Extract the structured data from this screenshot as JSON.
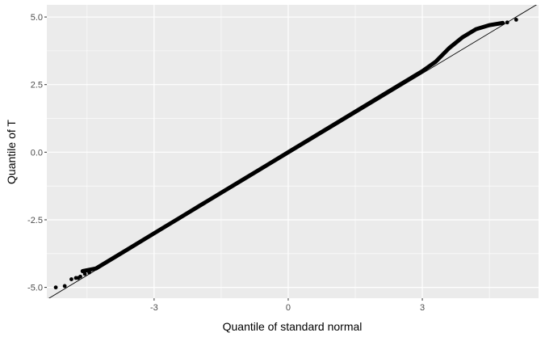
{
  "chart_data": {
    "type": "scatter",
    "subtype": "qq-plot",
    "xlabel": "Quantile of standard normal",
    "ylabel": "Quantile of T",
    "xlim": [
      -5.4,
      5.6
    ],
    "ylim": [
      -5.4,
      5.45
    ],
    "x_ticks": [
      -3,
      0,
      3
    ],
    "x_tick_labels": [
      "-3",
      "0",
      "3"
    ],
    "y_ticks": [
      -5.0,
      -2.5,
      0.0,
      2.5,
      5.0
    ],
    "y_tick_labels": [
      "-5.0",
      "-2.5",
      "0.0",
      "2.5",
      "5.0"
    ],
    "grid": true,
    "background": "#ebebeb",
    "gridline_color": "#ffffff",
    "point_color": "#000000",
    "reference_line": {
      "x": [
        -5.4,
        5.6
      ],
      "y": [
        -5.45,
        5.5
      ],
      "color": "#000000"
    },
    "curve": {
      "x": [
        -4.6,
        -4.3,
        -4.0,
        -3.6,
        -3.2,
        -2.8,
        -2.4,
        -2.0,
        -1.5,
        -1.0,
        -0.5,
        0.0,
        0.5,
        1.0,
        1.5,
        2.0,
        2.5,
        3.0,
        3.3,
        3.6,
        3.9,
        4.2,
        4.5,
        4.8
      ],
      "y": [
        -4.4,
        -4.3,
        -4.0,
        -3.6,
        -3.2,
        -2.8,
        -2.4,
        -2.0,
        -1.5,
        -1.0,
        -0.5,
        0.0,
        0.5,
        1.0,
        1.5,
        2.0,
        2.5,
        3.0,
        3.35,
        3.85,
        4.25,
        4.55,
        4.7,
        4.78
      ]
    },
    "points": {
      "x": [
        -5.2,
        -5.0,
        -4.85,
        -4.75,
        -4.7,
        -4.65,
        -4.55,
        -4.45,
        4.9,
        5.1
      ],
      "y": [
        -5.0,
        -4.95,
        -4.7,
        -4.65,
        -4.65,
        -4.6,
        -4.5,
        -4.45,
        4.8,
        4.9
      ]
    }
  }
}
